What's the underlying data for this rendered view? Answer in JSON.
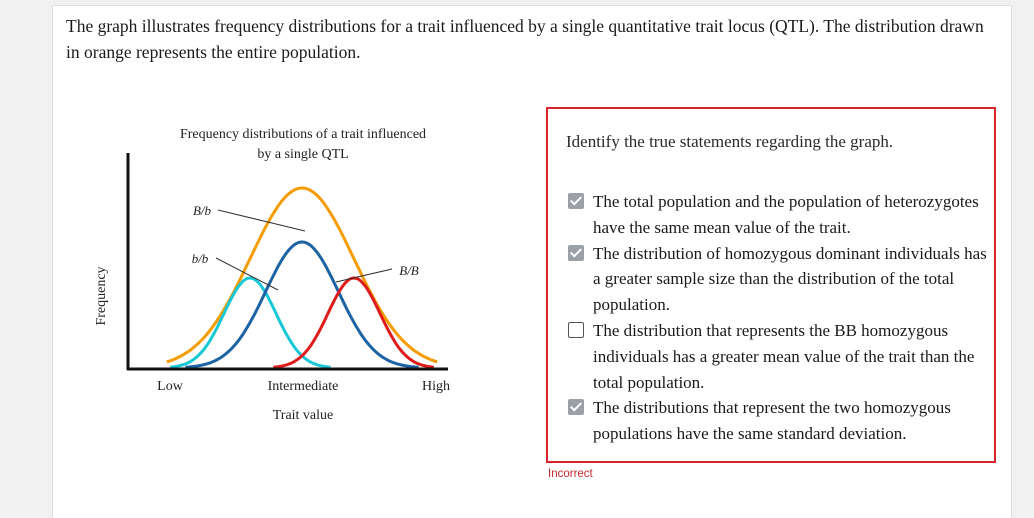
{
  "question": {
    "text": "The graph illustrates frequency distributions for a trait influenced by a single quantitative trait locus (QTL). The distribution drawn in orange represents the entire population."
  },
  "chart_data": {
    "type": "line",
    "title_line1": "Frequency distributions of a trait influenced",
    "title_line2": "by a single QTL",
    "xlabel": "Trait value",
    "ylabel": "Frequency",
    "x_ticks": [
      "Low",
      "Intermediate",
      "High"
    ],
    "series": [
      {
        "label": "",
        "color": "#f59c00",
        "mean": 0.5,
        "sd": 0.2,
        "peak": 1.0
      },
      {
        "label": "b/b",
        "color": "#19c8d6",
        "mean": 0.3,
        "sd": 0.1,
        "peak": 0.5
      },
      {
        "label": "B/b",
        "color": "#1c63a3",
        "mean": 0.5,
        "sd": 0.14,
        "peak": 0.7
      },
      {
        "label": "B/B",
        "color": "#e01b1b",
        "mean": 0.7,
        "sd": 0.1,
        "peak": 0.5
      }
    ]
  },
  "answer": {
    "prompt": "Identify the true statements regarding the graph.",
    "options": [
      {
        "text": "The total population and the population of heterozygotes have the same mean value of the trait.",
        "checked": true
      },
      {
        "text": "The distribution of homozygous dominant individuals has a greater sample size than the distribution of the total population.",
        "checked": true
      },
      {
        "text": "The distribution that represents the BB homozygous individuals has a greater mean value of the trait than the total population.",
        "checked": false
      },
      {
        "text": "The distributions that represent the two homozygous populations have the same standard deviation.",
        "checked": true
      }
    ],
    "status": "Incorrect",
    "status_color": "#c0282d",
    "box_border_color": "#d9232b"
  }
}
